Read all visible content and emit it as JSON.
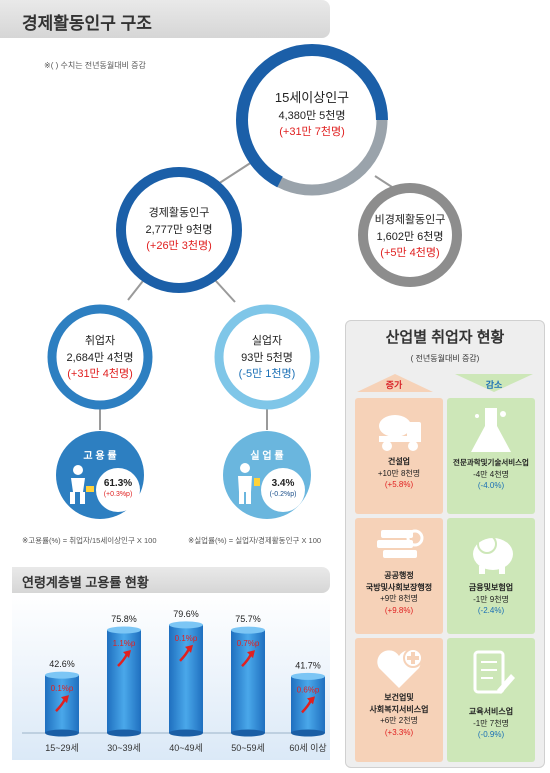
{
  "header": {
    "title": "경제활동인구 구조",
    "note": "※( ) 수치는 전년동월대비 증감"
  },
  "nodes": {
    "total": {
      "label": "15세이상인구",
      "value": "4,380만 5천명",
      "change": "(+31만 7천명)"
    },
    "econ": {
      "label": "경제활동인구",
      "value": "2,777만 9천명",
      "change": "(+26만 3천명)"
    },
    "nonecon": {
      "label": "비경제활동인구",
      "value": "1,602만 6천명",
      "change": "(+5만 4천명)"
    },
    "employed": {
      "label": "취업자",
      "value": "2,684만 4천명",
      "change": "(+31만 4천명)"
    },
    "unemployed": {
      "label": "실업자",
      "value": "93만 5천명",
      "change": "(-5만 1천명)"
    }
  },
  "rates": {
    "employment": {
      "label": "고 용 률",
      "value": "61.3%",
      "change": "(+0.3%p)",
      "formula": "※고용률(%) = 취업자/15세이상인구 X 100"
    },
    "unemployment": {
      "label": "실 업 률",
      "value": "3.4%",
      "change": "(-0.2%p)",
      "formula": "※실업률(%) = 실업자/경제활동인구 X 100"
    }
  },
  "age_section": {
    "title": "연령계층별 고용률 현황"
  },
  "chart_data": {
    "type": "bar",
    "categories": [
      "15~29세",
      "30~39세",
      "40~49세",
      "50~59세",
      "60세 이상"
    ],
    "values": [
      42.6,
      75.8,
      79.6,
      75.7,
      41.7
    ],
    "value_labels": [
      "42.6%",
      "75.8%",
      "79.6%",
      "75.7%",
      "41.7%"
    ],
    "changes": [
      "0.1%p",
      "1.1%p",
      "0.1%p",
      "0.7%p",
      "0.6%p"
    ],
    "title": "연령계층별 고용률 현황",
    "bar_color": "#2f8fd8"
  },
  "industry": {
    "title": "산업별 취업자 현황",
    "subtitle": "( 전년동월대비 증감)",
    "increase_label": "증가",
    "decrease_label": "감소",
    "increase": [
      {
        "name": "건설업",
        "value": "+10만 8천명",
        "change": "(+5.8%)",
        "icon": "cement-truck-icon"
      },
      {
        "name": "공공행정\n국방및사회보장행정",
        "value": "+9만 8천명",
        "change": "(+9.8%)",
        "icon": "books-icon"
      },
      {
        "name": "보건업및\n사회복지서비스업",
        "value": "+6만 2천명",
        "change": "(+3.3%)",
        "icon": "heart-plus-icon"
      }
    ],
    "decrease": [
      {
        "name": "전문과학및기술서비스업",
        "value": "-4만 4천명",
        "change": "(-4.0%)",
        "icon": "flask-icon"
      },
      {
        "name": "금융및보험업",
        "value": "-1만 9천명",
        "change": "(-2.4%)",
        "icon": "piggy-bank-icon"
      },
      {
        "name": "교육서비스업",
        "value": "-1만 7천명",
        "change": "(-0.9%)",
        "icon": "notepad-pencil-icon"
      }
    ]
  }
}
